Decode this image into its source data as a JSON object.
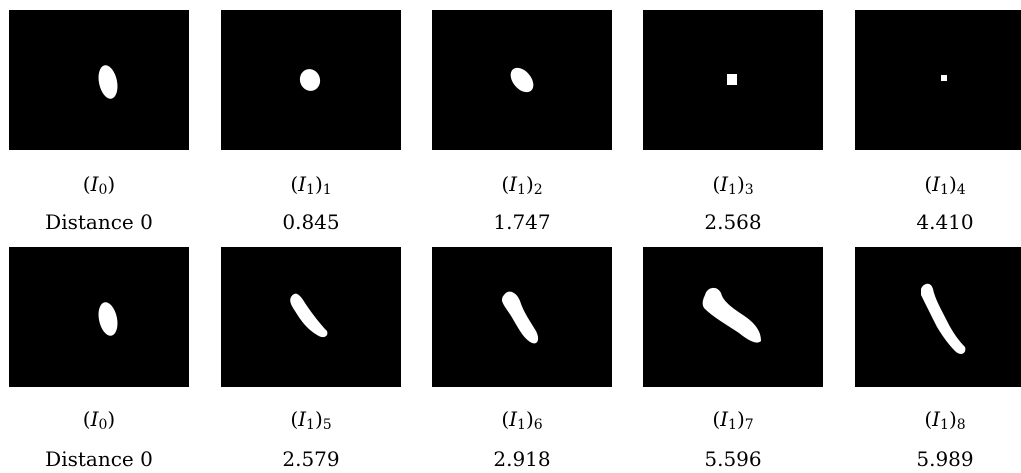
{
  "colors": {
    "background": "#000000",
    "shape": "#ffffff"
  },
  "rows": [
    {
      "cells": [
        {
          "name": "I",
          "sub": "0",
          "outer_sub": "",
          "distance": "Distance 0",
          "shape": "ellipse-small"
        },
        {
          "name": "I",
          "sub": "1",
          "outer_sub": "1",
          "distance": "0.845",
          "shape": "blob-round"
        },
        {
          "name": "I",
          "sub": "1",
          "outer_sub": "2",
          "distance": "1.747",
          "shape": "blob-tilted"
        },
        {
          "name": "I",
          "sub": "1",
          "outer_sub": "3",
          "distance": "2.568",
          "shape": "square-small"
        },
        {
          "name": "I",
          "sub": "1",
          "outer_sub": "4",
          "distance": "4.410",
          "shape": "dot-tiny"
        }
      ]
    },
    {
      "cells": [
        {
          "name": "I",
          "sub": "0",
          "outer_sub": "",
          "distance": "Distance 0",
          "shape": "ellipse-small"
        },
        {
          "name": "I",
          "sub": "1",
          "outer_sub": "5",
          "distance": "2.579",
          "shape": "streak-short"
        },
        {
          "name": "I",
          "sub": "1",
          "outer_sub": "6",
          "distance": "2.918",
          "shape": "streak-curved"
        },
        {
          "name": "I",
          "sub": "1",
          "outer_sub": "7",
          "distance": "5.596",
          "shape": "streak-long"
        },
        {
          "name": "I",
          "sub": "1",
          "outer_sub": "8",
          "distance": "5.989",
          "shape": "streak-diagonal"
        }
      ]
    }
  ]
}
